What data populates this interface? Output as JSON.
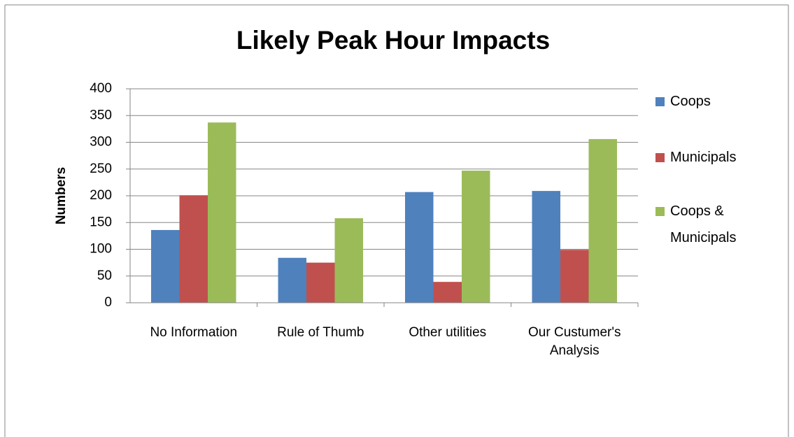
{
  "chart_data": {
    "type": "bar",
    "title": "Likely Peak Hour Impacts",
    "y_label": "Numbers",
    "categories": [
      "No Information",
      "Rule of Thumb",
      "Other utilities",
      "Our Custumer's Analysis"
    ],
    "series": [
      {
        "name": "Coops",
        "color": "#4f81bd",
        "values": [
          136,
          84,
          207,
          209
        ]
      },
      {
        "name": "Municipals",
        "color": "#c0504d",
        "values": [
          201,
          75,
          39,
          99
        ]
      },
      {
        "name": "Coops & Municipals",
        "color": "#9bbb59",
        "values": [
          337,
          158,
          247,
          306
        ]
      }
    ],
    "ylim": [
      0,
      400
    ],
    "yticks": [
      0,
      50,
      100,
      150,
      200,
      250,
      300,
      350,
      400
    ],
    "grid": true,
    "legend": "right"
  }
}
